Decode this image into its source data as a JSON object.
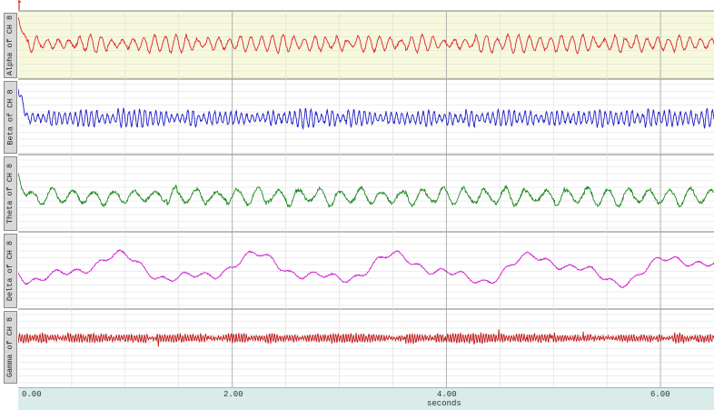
{
  "window": {
    "title": ""
  },
  "channels": [
    {
      "label": "Alpha of CH 8",
      "color": "#e0242b",
      "bg": "#f6f9dc"
    },
    {
      "label": "Beta of CH 8",
      "color": "#1c1cc8",
      "bg": "#ffffff"
    },
    {
      "label": "Theta of CH 8",
      "color": "#1e8a22",
      "bg": "#ffffff"
    },
    {
      "label": "Delta of CH 8",
      "color": "#d020d0",
      "bg": "#ffffff"
    },
    {
      "label": "Gamma of CH 8",
      "color": "#c01818",
      "bg": "#ffffff"
    }
  ],
  "axis": {
    "ticks": [
      "0.00",
      "2.00",
      "4.00",
      "6.00"
    ],
    "xlabel": "seconds",
    "range_seconds": [
      0,
      6.5
    ]
  },
  "chart_data": {
    "type": "line",
    "title": "",
    "xlabel": "seconds",
    "ylabel": "",
    "xlim": [
      0,
      6.5
    ],
    "grid": true,
    "series": [
      {
        "name": "Alpha of CH 8",
        "band": "alpha",
        "frequency_hz": 10
      },
      {
        "name": "Beta of CH 8",
        "band": "beta",
        "frequency_hz": 20
      },
      {
        "name": "Theta of CH 8",
        "band": "theta",
        "frequency_hz": 6
      },
      {
        "name": "Delta of CH 8",
        "band": "delta",
        "frequency_hz": 1.5
      },
      {
        "name": "Gamma of CH 8",
        "band": "gamma",
        "frequency_hz": 40
      }
    ]
  }
}
